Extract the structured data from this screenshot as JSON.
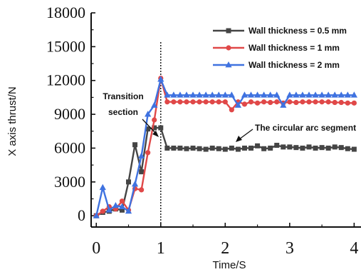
{
  "chart_data": {
    "type": "line",
    "xlabel": "Time/S",
    "ylabel": "X axis thrust/N",
    "xlim": [
      -0.08,
      4.25
    ],
    "ylim": [
      -1000,
      18000
    ],
    "xticks": [
      0,
      1,
      2,
      3,
      4
    ],
    "yticks": [
      0,
      3000,
      6000,
      9000,
      12000,
      15000,
      18000
    ],
    "grid": false,
    "legend_position": "top-right",
    "colors": {
      "s05": "#454545",
      "s1": "#e04848",
      "s2": "#3f72e0"
    },
    "series": [
      {
        "name": "Wall thickness = 0.5 mm",
        "marker": "square",
        "x": [
          0,
          0.1,
          0.2,
          0.3,
          0.4,
          0.5,
          0.6,
          0.7,
          0.8,
          0.9,
          1.0,
          1.1,
          1.2,
          1.3,
          1.4,
          1.5,
          1.6,
          1.7,
          1.8,
          1.9,
          2.0,
          2.1,
          2.2,
          2.3,
          2.4,
          2.5,
          2.6,
          2.7,
          2.8,
          2.9,
          3.0,
          3.1,
          3.2,
          3.3,
          3.4,
          3.5,
          3.6,
          3.7,
          3.8,
          3.9,
          4.0
        ],
        "y": [
          0,
          300,
          400,
          600,
          500,
          3000,
          6300,
          3900,
          7700,
          7800,
          7800,
          6000,
          6000,
          6000,
          5950,
          6000,
          5950,
          5900,
          6000,
          5950,
          5900,
          6000,
          5900,
          6000,
          6000,
          6200,
          5950,
          6000,
          6250,
          6100,
          6100,
          6050,
          6000,
          6100,
          6000,
          6050,
          6000,
          6100,
          6050,
          5950,
          5900
        ]
      },
      {
        "name": "Wall thickness = 1 mm",
        "marker": "circle",
        "x": [
          0,
          0.1,
          0.2,
          0.3,
          0.4,
          0.5,
          0.6,
          0.7,
          0.8,
          0.9,
          1.0,
          1.1,
          1.2,
          1.3,
          1.4,
          1.5,
          1.6,
          1.7,
          1.8,
          1.9,
          2.0,
          2.1,
          2.2,
          2.3,
          2.4,
          2.5,
          2.6,
          2.7,
          2.8,
          2.9,
          3.0,
          3.1,
          3.2,
          3.3,
          3.4,
          3.5,
          3.6,
          3.7,
          3.8,
          3.9,
          4.0
        ],
        "y": [
          0,
          400,
          800,
          600,
          1300,
          500,
          2400,
          2300,
          5600,
          8500,
          12200,
          10100,
          10100,
          10100,
          10100,
          10100,
          10100,
          10100,
          10100,
          10100,
          10100,
          9400,
          10100,
          9900,
          10100,
          10000,
          10100,
          10050,
          10100,
          10000,
          10100,
          10050,
          10100,
          10100,
          10100,
          10100,
          10100,
          10050,
          10050,
          10000,
          10000
        ]
      },
      {
        "name": "Wall thickness = 2 mm",
        "marker": "triangle",
        "x": [
          0,
          0.1,
          0.2,
          0.3,
          0.4,
          0.5,
          0.6,
          0.7,
          0.8,
          0.9,
          1.0,
          1.1,
          1.2,
          1.3,
          1.4,
          1.5,
          1.6,
          1.7,
          1.8,
          1.9,
          2.0,
          2.1,
          2.2,
          2.3,
          2.4,
          2.5,
          2.6,
          2.7,
          2.8,
          2.9,
          3.0,
          3.1,
          3.2,
          3.3,
          3.4,
          3.5,
          3.6,
          3.7,
          3.8,
          3.9,
          4.0
        ],
        "y": [
          0,
          2500,
          500,
          900,
          800,
          400,
          2800,
          5300,
          9000,
          9800,
          12100,
          10700,
          10700,
          10700,
          10700,
          10700,
          10700,
          10700,
          10700,
          10700,
          10700,
          10700,
          9800,
          10700,
          10700,
          10700,
          10700,
          10700,
          10700,
          9800,
          10700,
          10700,
          10700,
          10700,
          10700,
          10700,
          10700,
          10700,
          10700,
          10700,
          10700
        ]
      }
    ],
    "annotations": {
      "transition_line1": "Transition",
      "transition_line2": "section",
      "arc": "The circular arc segment"
    },
    "divider_x": 1.0
  }
}
